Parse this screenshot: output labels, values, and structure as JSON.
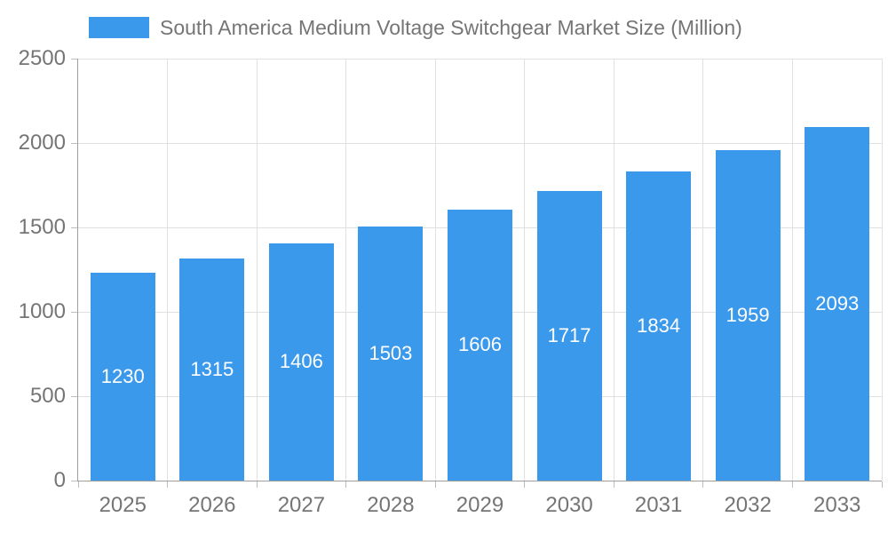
{
  "chart_data": {
    "type": "bar",
    "title": "South America Medium Voltage Switchgear Market Size (Million)",
    "categories": [
      "2025",
      "2026",
      "2027",
      "2028",
      "2029",
      "2030",
      "2031",
      "2032",
      "2033"
    ],
    "values": [
      1230,
      1315,
      1406,
      1503,
      1606,
      1717,
      1834,
      1959,
      2093
    ],
    "xlabel": "",
    "ylabel": "",
    "ylim": [
      0,
      2500
    ],
    "yticks": [
      0,
      500,
      1000,
      1500,
      2000,
      2500
    ],
    "grid": true,
    "legend_position": "top",
    "colors": {
      "bar": "#3B99EC",
      "value_label": "#FFFFFF",
      "axis_text": "#757575",
      "grid_line": "#E0E0E0",
      "axis_line": "#9E9E9E",
      "tick_mark": "#BDBDBD",
      "background": "#FFFFFF"
    }
  }
}
